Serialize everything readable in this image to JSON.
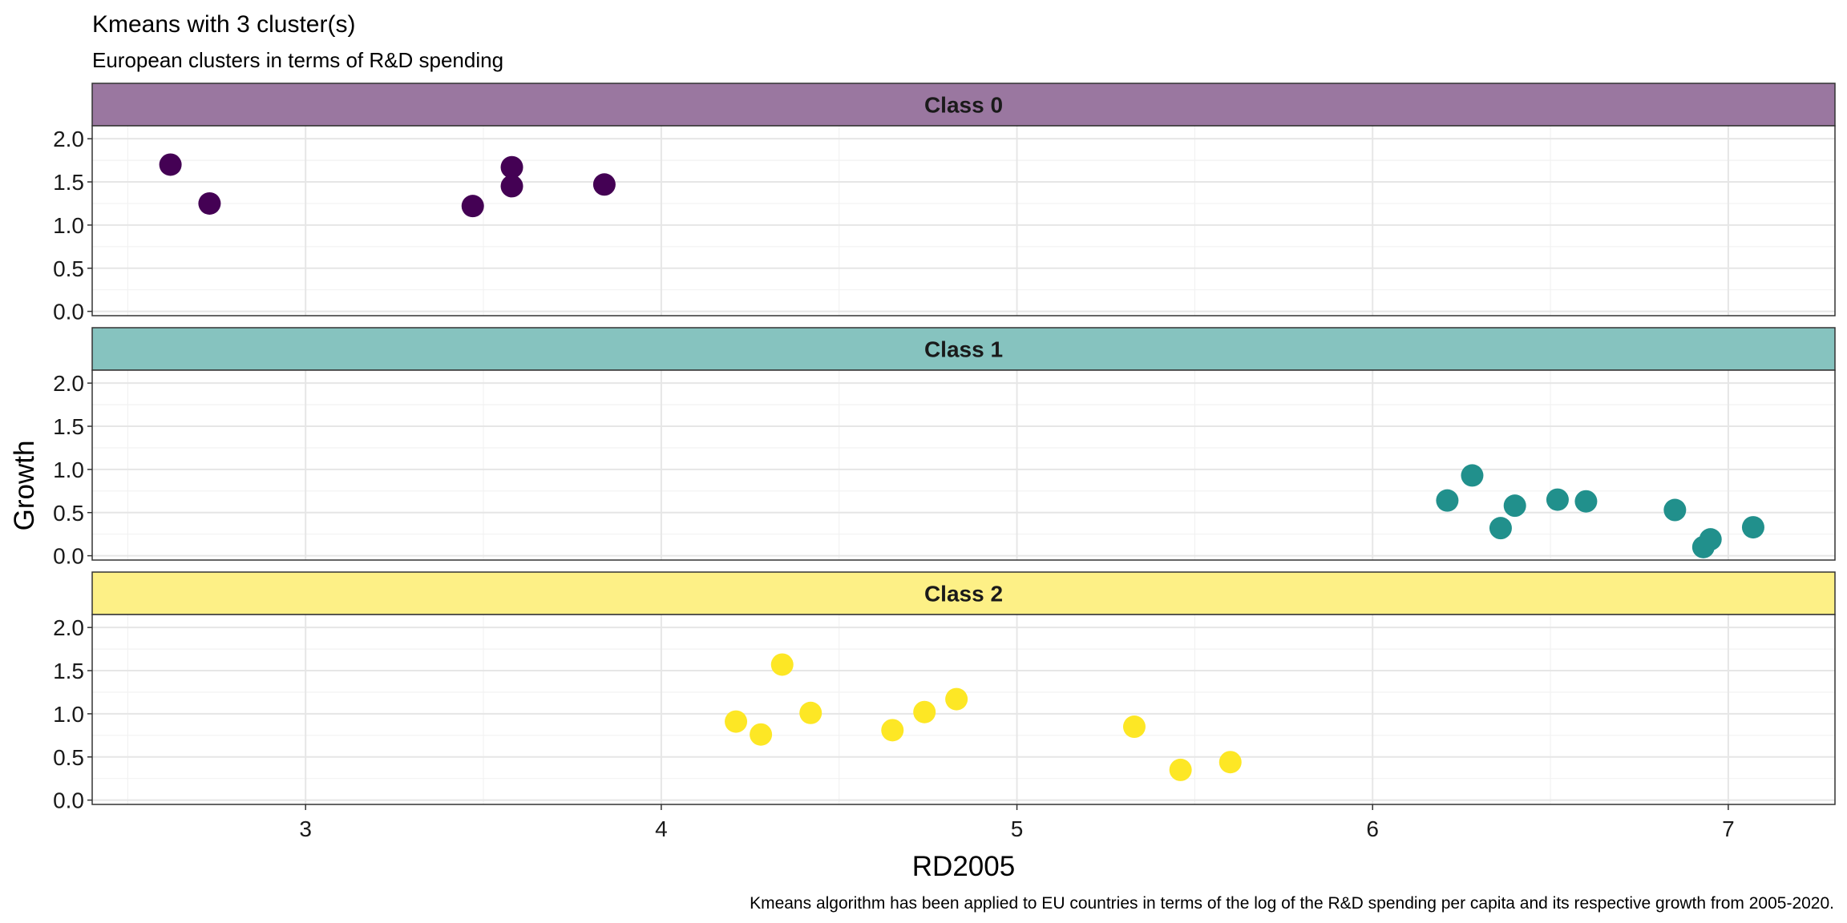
{
  "title": "Kmeans with 3 cluster(s)",
  "subtitle": "European clusters in terms of R&D spending",
  "caption": "Kmeans algorithm has been applied to EU countries in terms of the log of the R&D spending per capita and its respective growth from 2005-2020.",
  "chart_data": {
    "type": "scatter",
    "title": "Kmeans with 3 cluster(s)",
    "subtitle": "European clusters in terms of R&D spending",
    "xlabel": "RD2005",
    "ylabel": "Growth",
    "xlim": [
      2.4,
      7.3
    ],
    "ylim": [
      -0.05,
      2.15
    ],
    "x_ticks": [
      3,
      4,
      5,
      6,
      7
    ],
    "y_ticks": [
      0.0,
      0.5,
      1.0,
      1.5,
      2.0
    ],
    "x_tick_labels": [
      "3",
      "4",
      "5",
      "6",
      "7"
    ],
    "y_tick_labels": [
      "0.0",
      "0.5",
      "1.0",
      "1.5",
      "2.0"
    ],
    "grid": true,
    "legend": "none",
    "facets": [
      {
        "label": "Class 0",
        "strip_color": "#9A77A0",
        "point_color": "#440154",
        "points": [
          {
            "x": 2.62,
            "y": 1.7
          },
          {
            "x": 2.73,
            "y": 1.25
          },
          {
            "x": 3.47,
            "y": 1.22
          },
          {
            "x": 3.58,
            "y": 1.67
          },
          {
            "x": 3.58,
            "y": 1.45
          },
          {
            "x": 3.84,
            "y": 1.47
          }
        ]
      },
      {
        "label": "Class 1",
        "strip_color": "#86C3BF",
        "point_color": "#21908C",
        "points": [
          {
            "x": 6.21,
            "y": 0.64
          },
          {
            "x": 6.28,
            "y": 0.93
          },
          {
            "x": 6.36,
            "y": 0.32
          },
          {
            "x": 6.4,
            "y": 0.58
          },
          {
            "x": 6.52,
            "y": 0.65
          },
          {
            "x": 6.6,
            "y": 0.63
          },
          {
            "x": 6.85,
            "y": 0.53
          },
          {
            "x": 6.93,
            "y": 0.1
          },
          {
            "x": 6.95,
            "y": 0.19
          },
          {
            "x": 7.07,
            "y": 0.33
          }
        ]
      },
      {
        "label": "Class 2",
        "strip_color": "#FDF086",
        "point_color": "#FDE725",
        "points": [
          {
            "x": 4.21,
            "y": 0.91
          },
          {
            "x": 4.28,
            "y": 0.76
          },
          {
            "x": 4.34,
            "y": 1.57
          },
          {
            "x": 4.42,
            "y": 1.01
          },
          {
            "x": 4.65,
            "y": 0.81
          },
          {
            "x": 4.74,
            "y": 1.02
          },
          {
            "x": 4.83,
            "y": 1.17
          },
          {
            "x": 5.33,
            "y": 0.85
          },
          {
            "x": 5.46,
            "y": 0.35
          },
          {
            "x": 5.6,
            "y": 0.44
          }
        ]
      }
    ]
  }
}
